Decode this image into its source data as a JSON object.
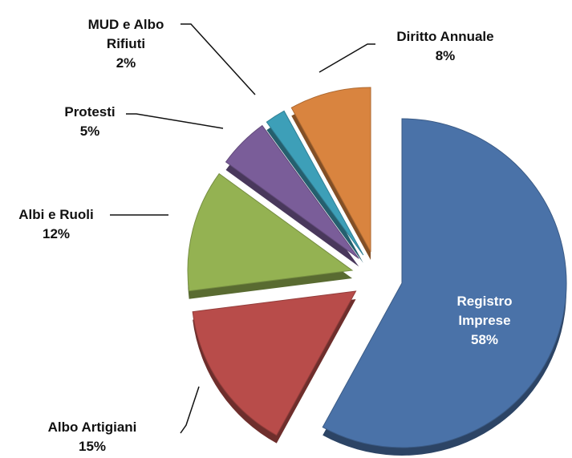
{
  "chart_data": {
    "type": "pie",
    "categories": [
      "Registro Imprese",
      "Albo Artigiani",
      "Albi e Ruoli",
      "Protesti",
      "MUD e Albo Rifiuti",
      "Diritto Annuale"
    ],
    "values": [
      58,
      15,
      12,
      5,
      2,
      8
    ],
    "value_labels": [
      "58%",
      "15%",
      "12%",
      "5%",
      "2%",
      "8%"
    ],
    "colors": [
      "#4a72a8",
      "#b84c4a",
      "#94b252",
      "#7a5d99",
      "#3d9fb8",
      "#d9843f"
    ]
  }
}
